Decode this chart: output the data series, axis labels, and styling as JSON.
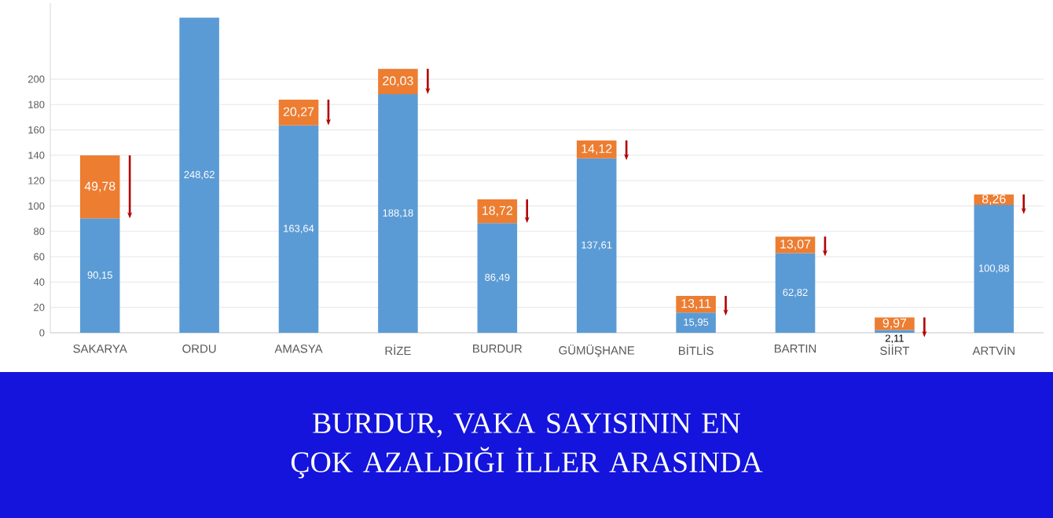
{
  "chart_data": {
    "type": "bar",
    "stacked": true,
    "title": "BURDUR, VAKA SAYISININ EN ÇOK AZALDIĞI İLLER ARASINDA",
    "categories": [
      "SAKARYA",
      "ORDU",
      "AMASYA",
      "RİZE",
      "BURDUR",
      "GÜMÜŞHANE",
      "BİTLİS",
      "BARTIN",
      "SİİRT",
      "ARTVİN"
    ],
    "series": [
      {
        "color": "#5b9bd5",
        "values": [
          90.15,
          248.62,
          163.64,
          188.18,
          86.49,
          137.61,
          15.95,
          62.82,
          2.11,
          100.88
        ],
        "value_labels": [
          "90,15",
          "248,62",
          "163,64",
          "188,18",
          "86,49",
          "137,61",
          "15,95",
          "62,82",
          "2,11",
          "100,88"
        ]
      },
      {
        "color": "#ed7d31",
        "values": [
          49.78,
          null,
          20.27,
          20.03,
          18.72,
          14.12,
          13.11,
          13.07,
          9.97,
          8.26
        ],
        "value_labels": [
          "49,78",
          null,
          "20,27",
          "20,03",
          "18,72",
          "14,12",
          "13,11",
          "13,07",
          "9,97",
          "8,26"
        ]
      }
    ],
    "ylim": [
      0,
      260
    ],
    "yticks": [
      0,
      20,
      40,
      60,
      80,
      100,
      120,
      140,
      160,
      180,
      200
    ],
    "grid": "y"
  }
}
